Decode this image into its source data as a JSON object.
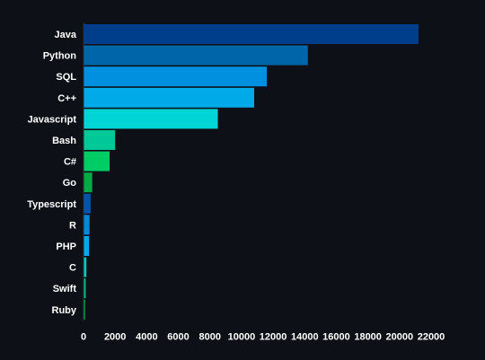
{
  "chart_data": {
    "type": "bar",
    "orientation": "horizontal",
    "categories": [
      "Java",
      "Python",
      "SQL",
      "C++",
      "Javascript",
      "Bash",
      "C#",
      "Go",
      "Typescript",
      "R",
      "PHP",
      "C",
      "Swift",
      "Ruby"
    ],
    "values": [
      21200,
      14200,
      11600,
      10800,
      8500,
      2000,
      1650,
      550,
      450,
      380,
      350,
      180,
      140,
      90
    ],
    "colors": [
      "#003d8a",
      "#0066aa",
      "#0090e0",
      "#00aae8",
      "#00d4d4",
      "#00c896",
      "#00cc66",
      "#00aa44",
      "#0055a8",
      "#0088d8",
      "#00aae8",
      "#00c8c0",
      "#00b888",
      "#00bb55"
    ],
    "x_ticks": [
      "0",
      "2000",
      "4000",
      "6000",
      "8000",
      "10000",
      "12000",
      "14000",
      "16000",
      "18000",
      "20000",
      "22000"
    ],
    "xlim": [
      0,
      22000
    ],
    "title": "",
    "xlabel": "",
    "ylabel": "",
    "grid": false,
    "legend": "none"
  }
}
